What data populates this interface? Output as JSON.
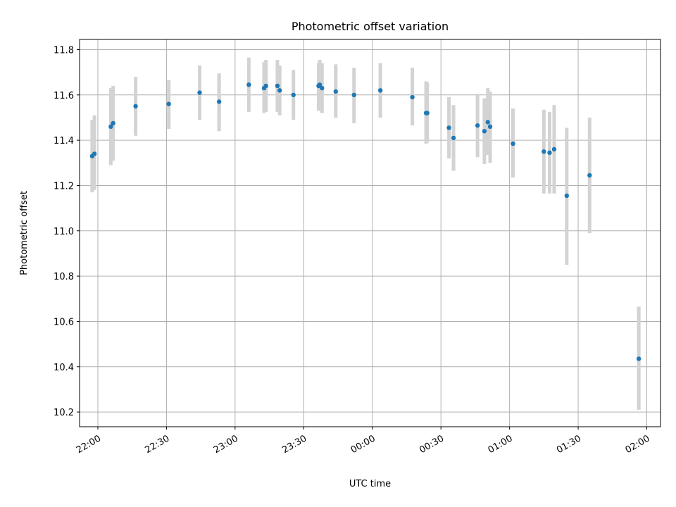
{
  "chart_data": {
    "type": "scatter",
    "title": "Photometric offset variation",
    "xlabel": "UTC time",
    "ylabel": "Photometric offset",
    "grid": true,
    "x_axis": {
      "unit": "UTC time",
      "range": [
        "21:52",
        "02:06"
      ],
      "ticks": [
        "22:00",
        "22:30",
        "23:00",
        "23:30",
        "00:00",
        "00:30",
        "01:00",
        "01:30",
        "02:00"
      ]
    },
    "y_axis": {
      "range": [
        10.135,
        11.845
      ],
      "ticks": [
        "10.2",
        "10.4",
        "10.6",
        "10.8",
        "11.0",
        "11.2",
        "11.4",
        "11.6",
        "11.8"
      ]
    },
    "colors": {
      "points": "#1f77b4",
      "errorbars": "#d3d3d3",
      "grid": "#b0b0b0"
    },
    "points": [
      {
        "t": "21:57:30",
        "y": 11.33,
        "lo": 11.17,
        "hi": 11.49
      },
      {
        "t": "21:58:30",
        "y": 11.34,
        "lo": 11.18,
        "hi": 11.51
      },
      {
        "t": "22:05:40",
        "y": 11.46,
        "lo": 11.29,
        "hi": 11.63
      },
      {
        "t": "22:06:40",
        "y": 11.475,
        "lo": 11.31,
        "hi": 11.64
      },
      {
        "t": "22:16:30",
        "y": 11.55,
        "lo": 11.42,
        "hi": 11.68
      },
      {
        "t": "22:31:00",
        "y": 11.56,
        "lo": 11.45,
        "hi": 11.665
      },
      {
        "t": "22:44:30",
        "y": 11.61,
        "lo": 11.49,
        "hi": 11.73
      },
      {
        "t": "22:53:00",
        "y": 11.57,
        "lo": 11.44,
        "hi": 11.695
      },
      {
        "t": "23:06:00",
        "y": 11.645,
        "lo": 11.525,
        "hi": 11.765
      },
      {
        "t": "23:12:40",
        "y": 11.63,
        "lo": 11.52,
        "hi": 11.745
      },
      {
        "t": "23:13:30",
        "y": 11.64,
        "lo": 11.525,
        "hi": 11.755
      },
      {
        "t": "23:18:30",
        "y": 11.64,
        "lo": 11.525,
        "hi": 11.755
      },
      {
        "t": "23:19:30",
        "y": 11.62,
        "lo": 11.51,
        "hi": 11.73
      },
      {
        "t": "23:25:30",
        "y": 11.6,
        "lo": 11.49,
        "hi": 11.71
      },
      {
        "t": "23:36:30",
        "y": 11.64,
        "lo": 11.53,
        "hi": 11.74
      },
      {
        "t": "23:37:00",
        "y": 11.645,
        "lo": 11.535,
        "hi": 11.755
      },
      {
        "t": "23:38:00",
        "y": 11.63,
        "lo": 11.52,
        "hi": 11.74
      },
      {
        "t": "23:44:00",
        "y": 11.615,
        "lo": 11.5,
        "hi": 11.735
      },
      {
        "t": "23:52:00",
        "y": 11.6,
        "lo": 11.475,
        "hi": 11.72
      },
      {
        "t": "00:03:30",
        "y": 11.62,
        "lo": 11.5,
        "hi": 11.74
      },
      {
        "t": "00:17:30",
        "y": 11.59,
        "lo": 11.465,
        "hi": 11.72
      },
      {
        "t": "00:23:30",
        "y": 11.52,
        "lo": 11.385,
        "hi": 11.66
      },
      {
        "t": "00:24:00",
        "y": 11.52,
        "lo": 11.39,
        "hi": 11.655
      },
      {
        "t": "00:33:30",
        "y": 11.455,
        "lo": 11.32,
        "hi": 11.59
      },
      {
        "t": "00:35:30",
        "y": 11.41,
        "lo": 11.265,
        "hi": 11.555
      },
      {
        "t": "00:46:00",
        "y": 11.465,
        "lo": 11.325,
        "hi": 11.605
      },
      {
        "t": "00:49:00",
        "y": 11.44,
        "lo": 11.295,
        "hi": 11.585
      },
      {
        "t": "00:50:30",
        "y": 11.48,
        "lo": 11.335,
        "hi": 11.63
      },
      {
        "t": "00:51:30",
        "y": 11.46,
        "lo": 11.3,
        "hi": 11.615
      },
      {
        "t": "01:01:30",
        "y": 11.385,
        "lo": 11.235,
        "hi": 11.54
      },
      {
        "t": "01:15:00",
        "y": 11.35,
        "lo": 11.165,
        "hi": 11.535
      },
      {
        "t": "01:17:30",
        "y": 11.345,
        "lo": 11.165,
        "hi": 11.525
      },
      {
        "t": "01:19:30",
        "y": 11.36,
        "lo": 11.165,
        "hi": 11.555
      },
      {
        "t": "01:25:00",
        "y": 11.155,
        "lo": 10.85,
        "hi": 11.455
      },
      {
        "t": "01:35:00",
        "y": 11.245,
        "lo": 10.99,
        "hi": 11.5
      },
      {
        "t": "01:56:30",
        "y": 10.435,
        "lo": 10.21,
        "hi": 10.665
      }
    ]
  }
}
